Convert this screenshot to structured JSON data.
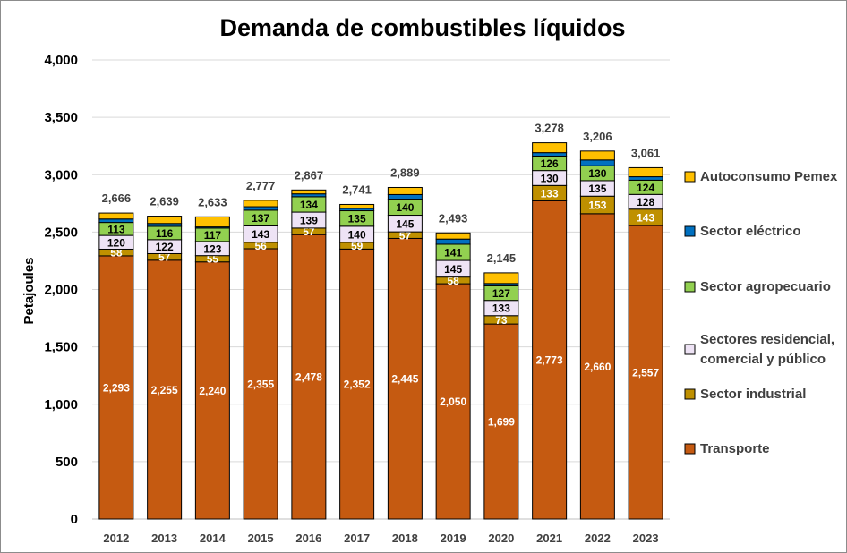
{
  "chart_data": {
    "type": "bar",
    "stacked": true,
    "title": "Demanda de combustibles líquidos",
    "xlabel": "",
    "ylabel": "Petajoules",
    "ylim": [
      0,
      4000
    ],
    "yticks": [
      "0",
      "500",
      "1,000",
      "1,500",
      "2,000",
      "2,500",
      "3,000",
      "3,500",
      "4,000"
    ],
    "ytick_values": [
      0,
      500,
      1000,
      1500,
      2000,
      2500,
      3000,
      3500,
      4000
    ],
    "grid": true,
    "legend_position": "right",
    "categories": [
      "2012",
      "2013",
      "2014",
      "2015",
      "2016",
      "2017",
      "2018",
      "2019",
      "2020",
      "2021",
      "2022",
      "2023"
    ],
    "totals": [
      2666,
      2639,
      2633,
      2777,
      2867,
      2741,
      2889,
      2493,
      2145,
      3278,
      3206,
      3061
    ],
    "total_labels": [
      "2,666",
      "2,639",
      "2,633",
      "2,777",
      "2,867",
      "2,741",
      "2,889",
      "2,493",
      "2,145",
      "3,278",
      "3,206",
      "3,061"
    ],
    "series": [
      {
        "name": "Transporte",
        "color": "#C55A11",
        "label_color": "#ffffff",
        "values": [
          2293,
          2255,
          2240,
          2355,
          2478,
          2352,
          2445,
          2050,
          1699,
          2773,
          2660,
          2557
        ],
        "labels": [
          "2,293",
          "2,255",
          "2,240",
          "2,355",
          "2,478",
          "2,352",
          "2,445",
          "2,050",
          "1,699",
          "2,773",
          "2,660",
          "2,557"
        ]
      },
      {
        "name": "Sector industrial",
        "color": "#BF9000",
        "label_color": "#ffffff",
        "values": [
          58,
          57,
          55,
          56,
          57,
          59,
          57,
          58,
          73,
          133,
          153,
          143
        ],
        "labels": [
          "58",
          "57",
          "55",
          "56",
          "57",
          "59",
          "57",
          "58",
          "73",
          "133",
          "153",
          "143"
        ]
      },
      {
        "name": "Sectores residencial, comercial y público",
        "color": "#EEE3F5",
        "label_color": "#000000",
        "values": [
          120,
          122,
          123,
          143,
          139,
          140,
          145,
          145,
          133,
          130,
          135,
          128
        ],
        "labels": [
          "120",
          "122",
          "123",
          "143",
          "139",
          "140",
          "145",
          "145",
          "133",
          "130",
          "135",
          "128"
        ]
      },
      {
        "name": "Sector agropecuario",
        "color": "#92D050",
        "label_color": "#000000",
        "values": [
          113,
          116,
          117,
          137,
          134,
          135,
          140,
          141,
          127,
          126,
          130,
          124
        ],
        "labels": [
          "113",
          "116",
          "117",
          "137",
          "134",
          "135",
          "140",
          "141",
          "127",
          "126",
          "130",
          "124"
        ]
      },
      {
        "name": "Sector eléctrico",
        "color": "#0070C0",
        "label_color": "#ffffff",
        "values": [
          30,
          25,
          10,
          30,
          25,
          20,
          40,
          45,
          20,
          30,
          50,
          30
        ],
        "labels": [
          "",
          "",
          "",
          "",
          "",
          "",
          "",
          "",
          "",
          "",
          "",
          ""
        ]
      },
      {
        "name": "Autoconsumo Pemex",
        "color": "#FFC000",
        "label_color": "#000000",
        "values": [
          52,
          64,
          88,
          56,
          34,
          35,
          62,
          54,
          93,
          86,
          78,
          79
        ],
        "labels": [
          "",
          "",
          "",
          "",
          "",
          "",
          "",
          "",
          "",
          "",
          "",
          ""
        ]
      }
    ],
    "legend_order": [
      5,
      4,
      3,
      2,
      1,
      0
    ],
    "legend_lines": [
      [
        "Autoconsumo Pemex"
      ],
      [
        "Sector eléctrico"
      ],
      [
        "Sector agropecuario"
      ],
      [
        "Sectores residencial,",
        "comercial y público"
      ],
      [
        "Sector industrial"
      ],
      [
        "Transporte"
      ]
    ]
  }
}
